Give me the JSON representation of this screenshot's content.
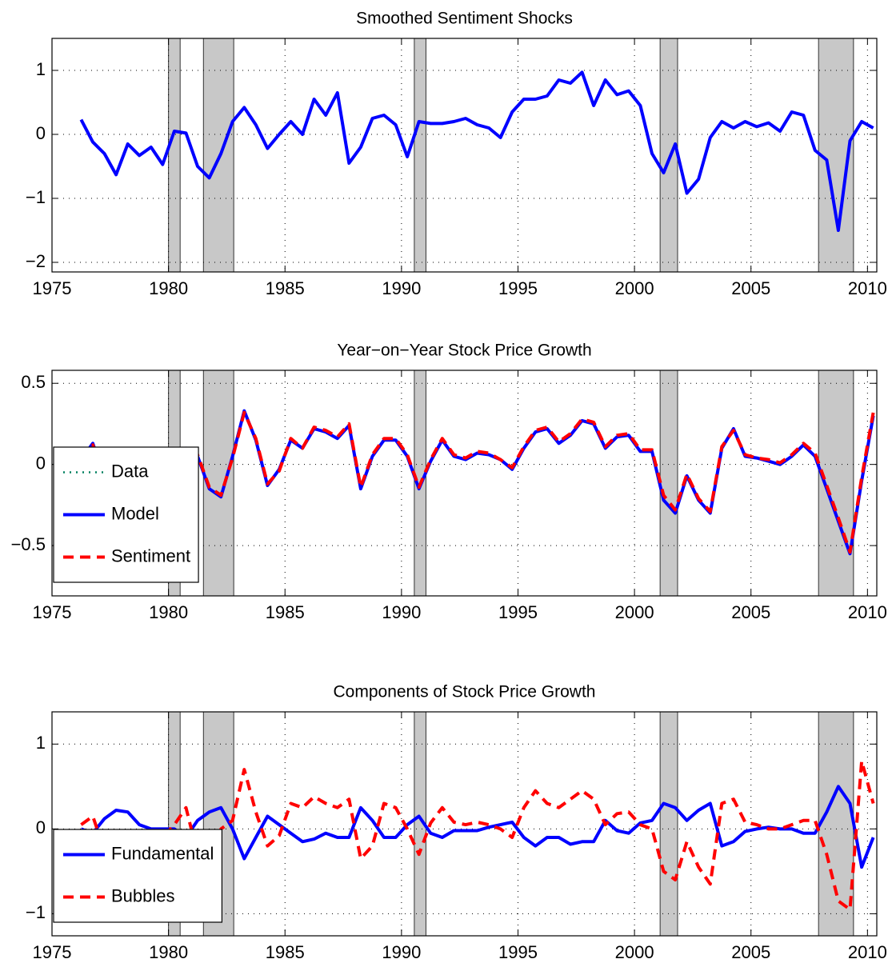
{
  "chart_data": [
    {
      "type": "line",
      "title": "Smoothed Sentiment Shocks",
      "x": [
        1976.25,
        1976.75,
        1977.25,
        1977.75,
        1978.25,
        1978.75,
        1979.25,
        1979.75,
        1980.25,
        1980.75,
        1981.25,
        1981.75,
        1982.25,
        1982.75,
        1983.25,
        1983.75,
        1984.25,
        1984.75,
        1985.25,
        1985.75,
        1986.25,
        1986.75,
        1987.25,
        1987.75,
        1988.25,
        1988.75,
        1989.25,
        1989.75,
        1990.25,
        1990.75,
        1991.25,
        1991.75,
        1992.25,
        1992.75,
        1993.25,
        1993.75,
        1994.25,
        1994.75,
        1995.25,
        1995.75,
        1996.25,
        1996.75,
        1997.25,
        1997.75,
        1998.25,
        1998.75,
        1999.25,
        1999.75,
        2000.25,
        2000.75,
        2001.25,
        2001.75,
        2002.25,
        2002.75,
        2003.25,
        2003.75,
        2004.25,
        2004.75,
        2005.25,
        2005.75,
        2006.25,
        2006.75,
        2007.25,
        2007.75,
        2008.25,
        2008.75,
        2009.25,
        2009.75,
        2010.25
      ],
      "values": [
        0.23,
        -0.12,
        -0.3,
        -0.63,
        -0.15,
        -0.33,
        -0.2,
        -0.47,
        0.05,
        0.02,
        -0.5,
        -0.68,
        -0.3,
        0.2,
        0.42,
        0.15,
        -0.22,
        0.0,
        0.2,
        0.0,
        0.55,
        0.3,
        0.65,
        -0.45,
        -0.2,
        0.25,
        0.3,
        0.15,
        -0.35,
        0.2,
        0.17,
        0.17,
        0.2,
        0.25,
        0.15,
        0.1,
        -0.05,
        0.35,
        0.55,
        0.55,
        0.6,
        0.85,
        0.8,
        0.97,
        0.45,
        0.85,
        0.62,
        0.68,
        0.45,
        -0.3,
        -0.6,
        -0.15,
        -0.92,
        -0.7,
        -0.05,
        0.2,
        0.1,
        0.2,
        0.12,
        0.18,
        0.05,
        0.35,
        0.3,
        -0.25,
        -0.4,
        -1.5,
        -0.1,
        0.2,
        0.1
      ],
      "color": "#0000ff",
      "dash": "solid",
      "xlim": [
        1975,
        2010.4
      ],
      "xticks": [
        1975,
        1980,
        1985,
        1990,
        1995,
        2000,
        2005,
        2010
      ],
      "ylim": [
        -2.15,
        1.5
      ],
      "yticks": [
        {
          "value": -2,
          "label": "−2"
        },
        {
          "value": -1,
          "label": "−1"
        },
        0,
        1
      ],
      "grid": true,
      "shade_color": "#c8c8c8",
      "recessions": [
        [
          1980,
          1980.5
        ],
        [
          1981.5,
          1982.8
        ],
        [
          1990.55,
          1991.05
        ],
        [
          2001.1,
          2001.85
        ],
        [
          2007.9,
          2009.4
        ]
      ]
    },
    {
      "type": "line",
      "title": "Year−on−Year Stock Price Growth",
      "x": [
        1976.25,
        1976.75,
        1977.25,
        1977.75,
        1978.25,
        1978.75,
        1979.25,
        1979.75,
        1980.25,
        1980.75,
        1981.25,
        1981.75,
        1982.25,
        1982.75,
        1983.25,
        1983.75,
        1984.25,
        1984.75,
        1985.25,
        1985.75,
        1986.25,
        1986.75,
        1987.25,
        1987.75,
        1988.25,
        1988.75,
        1989.25,
        1989.75,
        1990.25,
        1990.75,
        1991.25,
        1991.75,
        1992.25,
        1992.75,
        1993.25,
        1993.75,
        1994.25,
        1994.75,
        1995.25,
        1995.75,
        1996.25,
        1996.75,
        1997.25,
        1997.75,
        1998.25,
        1998.75,
        1999.25,
        1999.75,
        2000.25,
        2000.75,
        2001.25,
        2001.75,
        2002.25,
        2002.75,
        2003.25,
        2003.75,
        2004.25,
        2004.75,
        2005.25,
        2005.75,
        2006.25,
        2006.75,
        2007.25,
        2007.75,
        2008.25,
        2008.75,
        2009.25,
        2009.75,
        2010.25
      ],
      "series": [
        {
          "name": "Data",
          "color": "#008060",
          "dash": "dotted",
          "values": [
            0.03,
            0.13,
            -0.08,
            -0.15,
            -0.05,
            -0.07,
            -0.05,
            -0.02,
            -0.05,
            0.1,
            0.05,
            -0.15,
            -0.2,
            0.05,
            0.33,
            0.15,
            -0.13,
            -0.03,
            0.15,
            0.1,
            0.22,
            0.2,
            0.16,
            0.24,
            -0.15,
            0.05,
            0.15,
            0.15,
            0.05,
            -0.15,
            0.02,
            0.15,
            0.05,
            0.03,
            0.07,
            0.06,
            0.03,
            -0.03,
            0.1,
            0.2,
            0.22,
            0.13,
            0.18,
            0.27,
            0.25,
            0.1,
            0.17,
            0.18,
            0.08,
            0.08,
            -0.22,
            -0.3,
            -0.07,
            -0.22,
            -0.3,
            0.1,
            0.22,
            0.05,
            0.04,
            0.02,
            0.0,
            0.05,
            0.12,
            0.05,
            -0.15,
            -0.35,
            -0.55,
            -0.1,
            0.3
          ]
        },
        {
          "name": "Model",
          "color": "#0000ff",
          "dash": "solid",
          "values": [
            0.03,
            0.13,
            -0.08,
            -0.15,
            -0.05,
            -0.07,
            -0.05,
            -0.02,
            -0.05,
            0.1,
            0.05,
            -0.15,
            -0.2,
            0.05,
            0.33,
            0.15,
            -0.13,
            -0.03,
            0.15,
            0.1,
            0.22,
            0.2,
            0.16,
            0.24,
            -0.15,
            0.05,
            0.15,
            0.15,
            0.05,
            -0.15,
            0.02,
            0.15,
            0.05,
            0.03,
            0.07,
            0.06,
            0.03,
            -0.03,
            0.1,
            0.2,
            0.22,
            0.13,
            0.18,
            0.27,
            0.25,
            0.1,
            0.17,
            0.18,
            0.08,
            0.08,
            -0.22,
            -0.3,
            -0.07,
            -0.22,
            -0.3,
            0.1,
            0.22,
            0.05,
            0.04,
            0.02,
            0.0,
            0.05,
            0.12,
            0.05,
            -0.15,
            -0.35,
            -0.55,
            -0.1,
            0.3
          ]
        },
        {
          "name": "Sentiment",
          "color": "#ff0000",
          "dash": "dashed",
          "values": [
            0.04,
            0.12,
            -0.07,
            -0.14,
            -0.06,
            -0.06,
            -0.06,
            -0.03,
            -0.06,
            0.11,
            0.06,
            -0.14,
            -0.19,
            0.04,
            0.32,
            0.16,
            -0.12,
            -0.04,
            0.16,
            0.1,
            0.23,
            0.21,
            0.17,
            0.25,
            -0.14,
            0.06,
            0.16,
            0.16,
            0.06,
            -0.14,
            0.03,
            0.16,
            0.06,
            0.04,
            0.08,
            0.07,
            0.03,
            -0.02,
            0.11,
            0.21,
            0.23,
            0.14,
            0.19,
            0.28,
            0.26,
            0.11,
            0.18,
            0.19,
            0.09,
            0.09,
            -0.19,
            -0.28,
            -0.06,
            -0.21,
            -0.29,
            0.11,
            0.21,
            0.06,
            0.04,
            0.03,
            0.01,
            0.06,
            0.13,
            0.07,
            -0.13,
            -0.33,
            -0.54,
            -0.08,
            0.32
          ]
        }
      ],
      "xlim": [
        1975,
        2010.4
      ],
      "xticks": [
        1975,
        1980,
        1985,
        1990,
        1995,
        2000,
        2005,
        2010
      ],
      "ylim": [
        -0.81,
        0.58
      ],
      "yticks": [
        {
          "value": -0.5,
          "label": "−0.5"
        },
        0,
        0.5
      ],
      "grid": true,
      "legend": "lower left",
      "shade_color": "#c8c8c8",
      "recessions": [
        [
          1980,
          1980.5
        ],
        [
          1981.5,
          1982.8
        ],
        [
          1990.55,
          1991.05
        ],
        [
          2001.1,
          2001.85
        ],
        [
          2007.9,
          2009.4
        ]
      ]
    },
    {
      "type": "line",
      "title": "Components of Stock Price Growth",
      "x": [
        1976.25,
        1976.75,
        1977.25,
        1977.75,
        1978.25,
        1978.75,
        1979.25,
        1979.75,
        1980.25,
        1980.75,
        1981.25,
        1981.75,
        1982.25,
        1982.75,
        1983.25,
        1983.75,
        1984.25,
        1984.75,
        1985.25,
        1985.75,
        1986.25,
        1986.75,
        1987.25,
        1987.75,
        1988.25,
        1988.75,
        1989.25,
        1989.75,
        1990.25,
        1990.75,
        1991.25,
        1991.75,
        1992.25,
        1992.75,
        1993.25,
        1993.75,
        1994.25,
        1994.75,
        1995.25,
        1995.75,
        1996.25,
        1996.75,
        1997.25,
        1997.75,
        1998.25,
        1998.75,
        1999.25,
        1999.75,
        2000.25,
        2000.75,
        2001.25,
        2001.75,
        2002.25,
        2002.75,
        2003.25,
        2003.75,
        2004.25,
        2004.75,
        2005.25,
        2005.75,
        2006.25,
        2006.75,
        2007.25,
        2007.75,
        2008.25,
        2008.75,
        2009.25,
        2009.75,
        2010.25
      ],
      "series": [
        {
          "name": "Fundamental",
          "color": "#0000ff",
          "dash": "solid",
          "values": [
            0.0,
            -0.05,
            0.12,
            0.22,
            0.2,
            0.05,
            0.0,
            0.0,
            0.0,
            -0.1,
            0.1,
            0.2,
            0.25,
            0.0,
            -0.35,
            -0.1,
            0.15,
            0.05,
            -0.05,
            -0.15,
            -0.12,
            -0.05,
            -0.1,
            -0.1,
            0.25,
            0.1,
            -0.1,
            -0.1,
            0.05,
            0.15,
            -0.05,
            -0.1,
            -0.02,
            -0.02,
            -0.02,
            0.02,
            0.05,
            0.08,
            -0.1,
            -0.2,
            -0.1,
            -0.1,
            -0.18,
            -0.15,
            -0.15,
            0.1,
            -0.02,
            -0.05,
            0.07,
            0.1,
            0.3,
            0.25,
            0.1,
            0.22,
            0.3,
            -0.2,
            -0.15,
            -0.03,
            0.0,
            0.02,
            0.0,
            0.0,
            -0.05,
            -0.05,
            0.2,
            0.5,
            0.3,
            -0.45,
            -0.1
          ]
        },
        {
          "name": "Bubbles",
          "color": "#ff0000",
          "dash": "dashed",
          "values": [
            0.05,
            0.15,
            -0.25,
            -0.4,
            -0.45,
            -0.15,
            -0.1,
            -0.1,
            0.05,
            0.25,
            -0.3,
            -0.45,
            0.0,
            0.1,
            0.7,
            0.2,
            -0.2,
            -0.08,
            0.3,
            0.25,
            0.38,
            0.3,
            0.25,
            0.35,
            -0.35,
            -0.2,
            0.3,
            0.25,
            0.0,
            -0.3,
            0.07,
            0.25,
            0.08,
            0.05,
            0.08,
            0.05,
            0.0,
            -0.1,
            0.25,
            0.45,
            0.3,
            0.25,
            0.35,
            0.45,
            0.35,
            0.05,
            0.18,
            0.2,
            0.05,
            0.0,
            -0.5,
            -0.6,
            -0.15,
            -0.45,
            -0.65,
            0.3,
            0.35,
            0.08,
            0.05,
            0.0,
            0.0,
            0.05,
            0.1,
            0.1,
            -0.3,
            -0.85,
            -0.95,
            0.8,
            0.3
          ]
        }
      ],
      "xlim": [
        1975,
        2010.4
      ],
      "xticks": [
        1975,
        1980,
        1985,
        1990,
        1995,
        2000,
        2005,
        2010
      ],
      "ylim": [
        -1.26,
        1.38
      ],
      "yticks": [
        {
          "value": -1,
          "label": "−1"
        },
        0,
        1
      ],
      "grid": true,
      "legend": "lower left",
      "shade_color": "#c8c8c8",
      "recessions": [
        [
          1980,
          1980.5
        ],
        [
          1981.5,
          1982.8
        ],
        [
          1990.55,
          1991.05
        ],
        [
          2001.1,
          2001.85
        ],
        [
          2007.9,
          2009.4
        ]
      ]
    }
  ]
}
